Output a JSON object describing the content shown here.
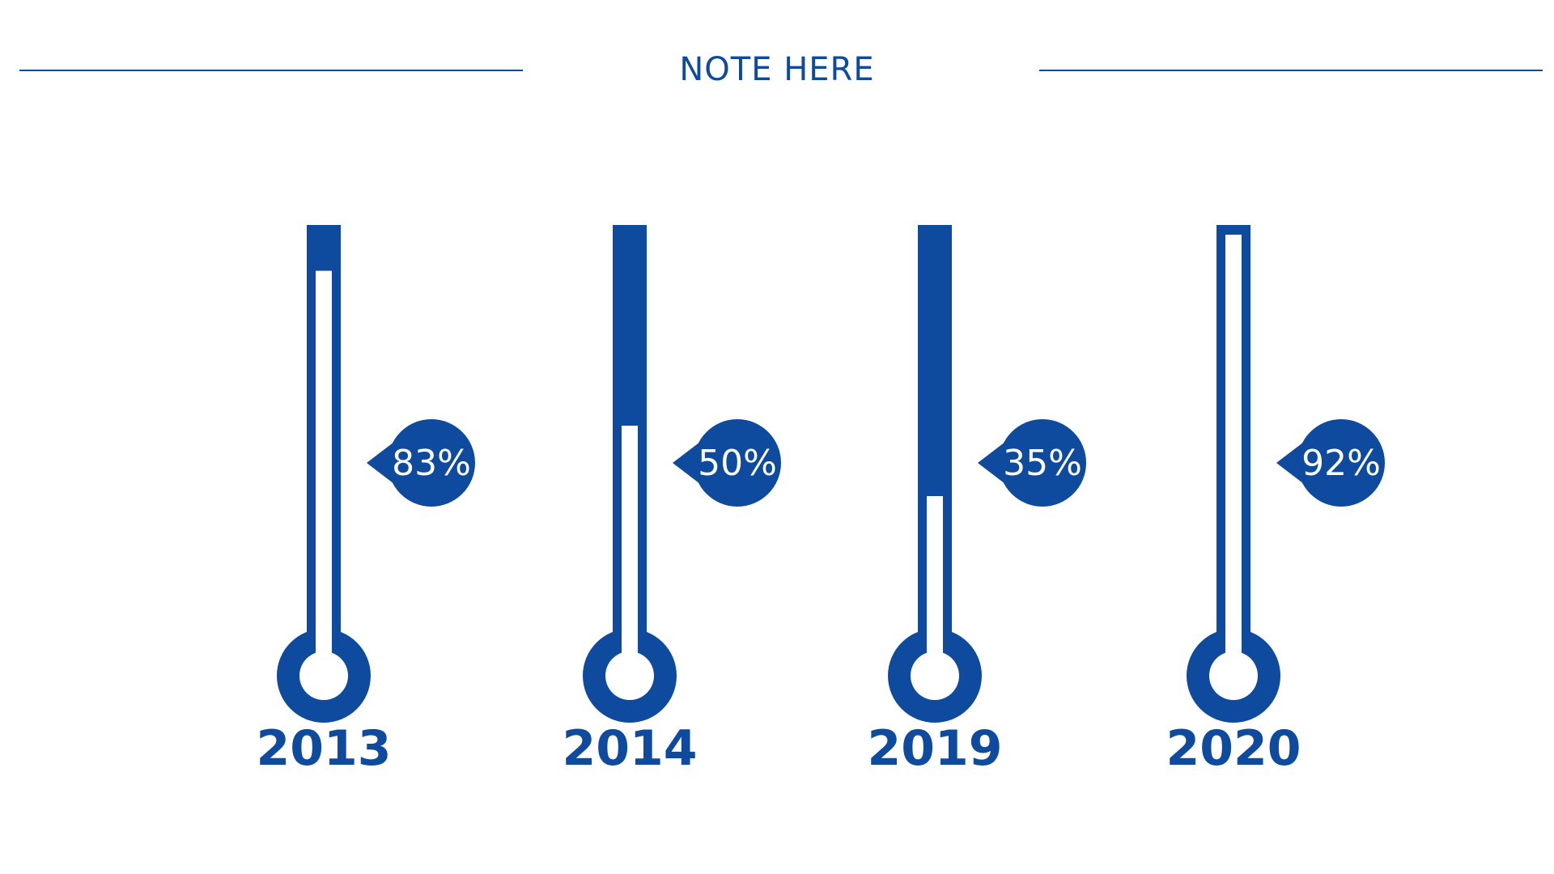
{
  "header": {
    "title": "NOTE HERE"
  },
  "colors": {
    "accent": "#0E4A9E",
    "background": "#FFFFFF"
  },
  "chart_data": {
    "type": "bar",
    "style": "thermometer",
    "title": "NOTE HERE",
    "xlabel": "",
    "ylabel": "",
    "categories": [
      "2013",
      "2014",
      "2019",
      "2020"
    ],
    "values": [
      83,
      50,
      35,
      92
    ],
    "value_labels": [
      "83%",
      "50%",
      "35%",
      "92%"
    ],
    "ylim": [
      0,
      100
    ],
    "grid": false,
    "legend": "none"
  }
}
